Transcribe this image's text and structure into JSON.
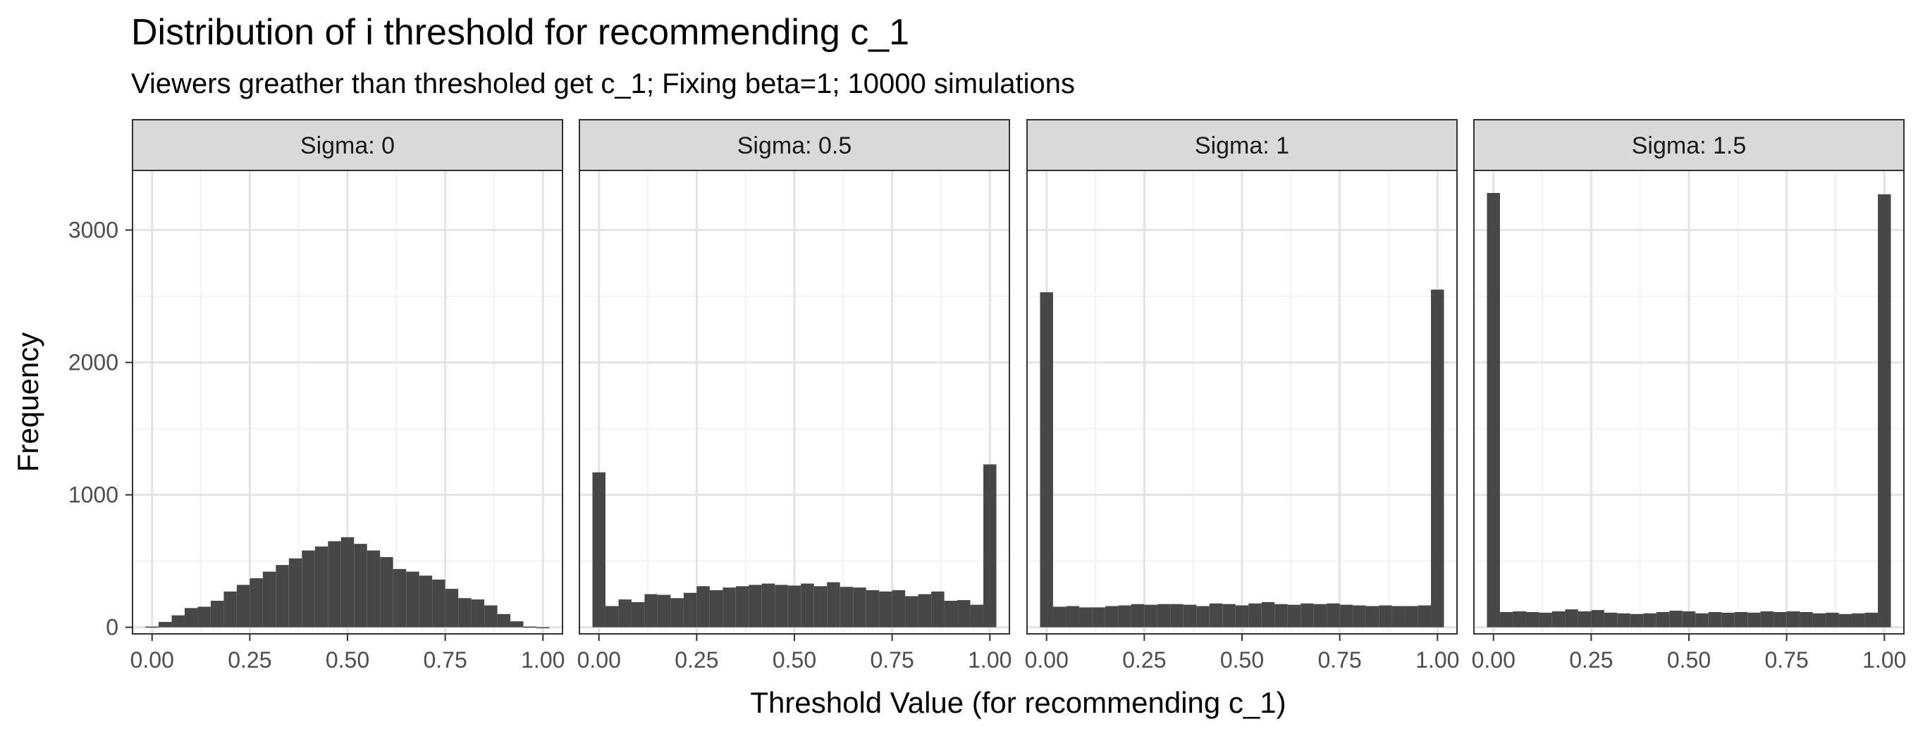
{
  "title": "Distribution of i threshold for recommending c_1",
  "subtitle": "Viewers greather than thresholed get c_1; Fixing beta=1; 10000 simulations",
  "colors": {
    "bar": "#474747",
    "grid_major": "#e3e3e3",
    "grid_minor": "#f2f2f2",
    "panel_border": "#333333",
    "strip_fill": "#d9d9d9"
  },
  "chart_data": {
    "type": "bar",
    "subtype": "faceted-histogram",
    "xlabel": "Threshold Value (for recommending c_1)",
    "ylabel": "Frequency",
    "xlim": [
      -0.05,
      1.05
    ],
    "ylim": [
      -50,
      3450
    ],
    "x_ticks": [
      "0.00",
      "0.25",
      "0.50",
      "0.75",
      "1.00"
    ],
    "y_ticks": [
      "0",
      "1000",
      "2000",
      "3000"
    ],
    "grid": true,
    "bin_width": 0.0333,
    "bin_centers": [
      0.0,
      0.0333,
      0.0667,
      0.1,
      0.1333,
      0.1667,
      0.2,
      0.2333,
      0.2667,
      0.3,
      0.3333,
      0.3667,
      0.4,
      0.4333,
      0.4667,
      0.5,
      0.5333,
      0.5667,
      0.6,
      0.6333,
      0.6667,
      0.7,
      0.7333,
      0.7667,
      0.8,
      0.8333,
      0.8667,
      0.9,
      0.9333,
      0.9667,
      1.0
    ],
    "panels": [
      {
        "strip": "Sigma: 0",
        "values": [
          5,
          40,
          90,
          145,
          155,
          200,
          270,
          320,
          370,
          420,
          470,
          520,
          580,
          610,
          650,
          680,
          630,
          580,
          530,
          440,
          420,
          390,
          360,
          290,
          220,
          210,
          165,
          100,
          45,
          5,
          0
        ]
      },
      {
        "strip": "Sigma: 0.5",
        "values": [
          1170,
          160,
          210,
          190,
          250,
          245,
          220,
          260,
          310,
          280,
          300,
          310,
          320,
          330,
          320,
          315,
          330,
          310,
          340,
          305,
          300,
          280,
          270,
          280,
          235,
          250,
          270,
          200,
          205,
          170,
          1230
        ]
      },
      {
        "strip": "Sigma: 1",
        "values": [
          2530,
          155,
          160,
          150,
          150,
          160,
          165,
          175,
          170,
          175,
          175,
          170,
          160,
          180,
          175,
          165,
          180,
          190,
          175,
          170,
          180,
          175,
          180,
          170,
          165,
          160,
          165,
          160,
          160,
          165,
          2550
        ]
      },
      {
        "strip": "Sigma: 1.5",
        "values": [
          3280,
          115,
          120,
          115,
          110,
          120,
          135,
          120,
          130,
          110,
          105,
          100,
          105,
          115,
          125,
          120,
          105,
          115,
          110,
          115,
          110,
          120,
          115,
          120,
          115,
          105,
          110,
          100,
          105,
          110,
          3270
        ]
      }
    ]
  }
}
